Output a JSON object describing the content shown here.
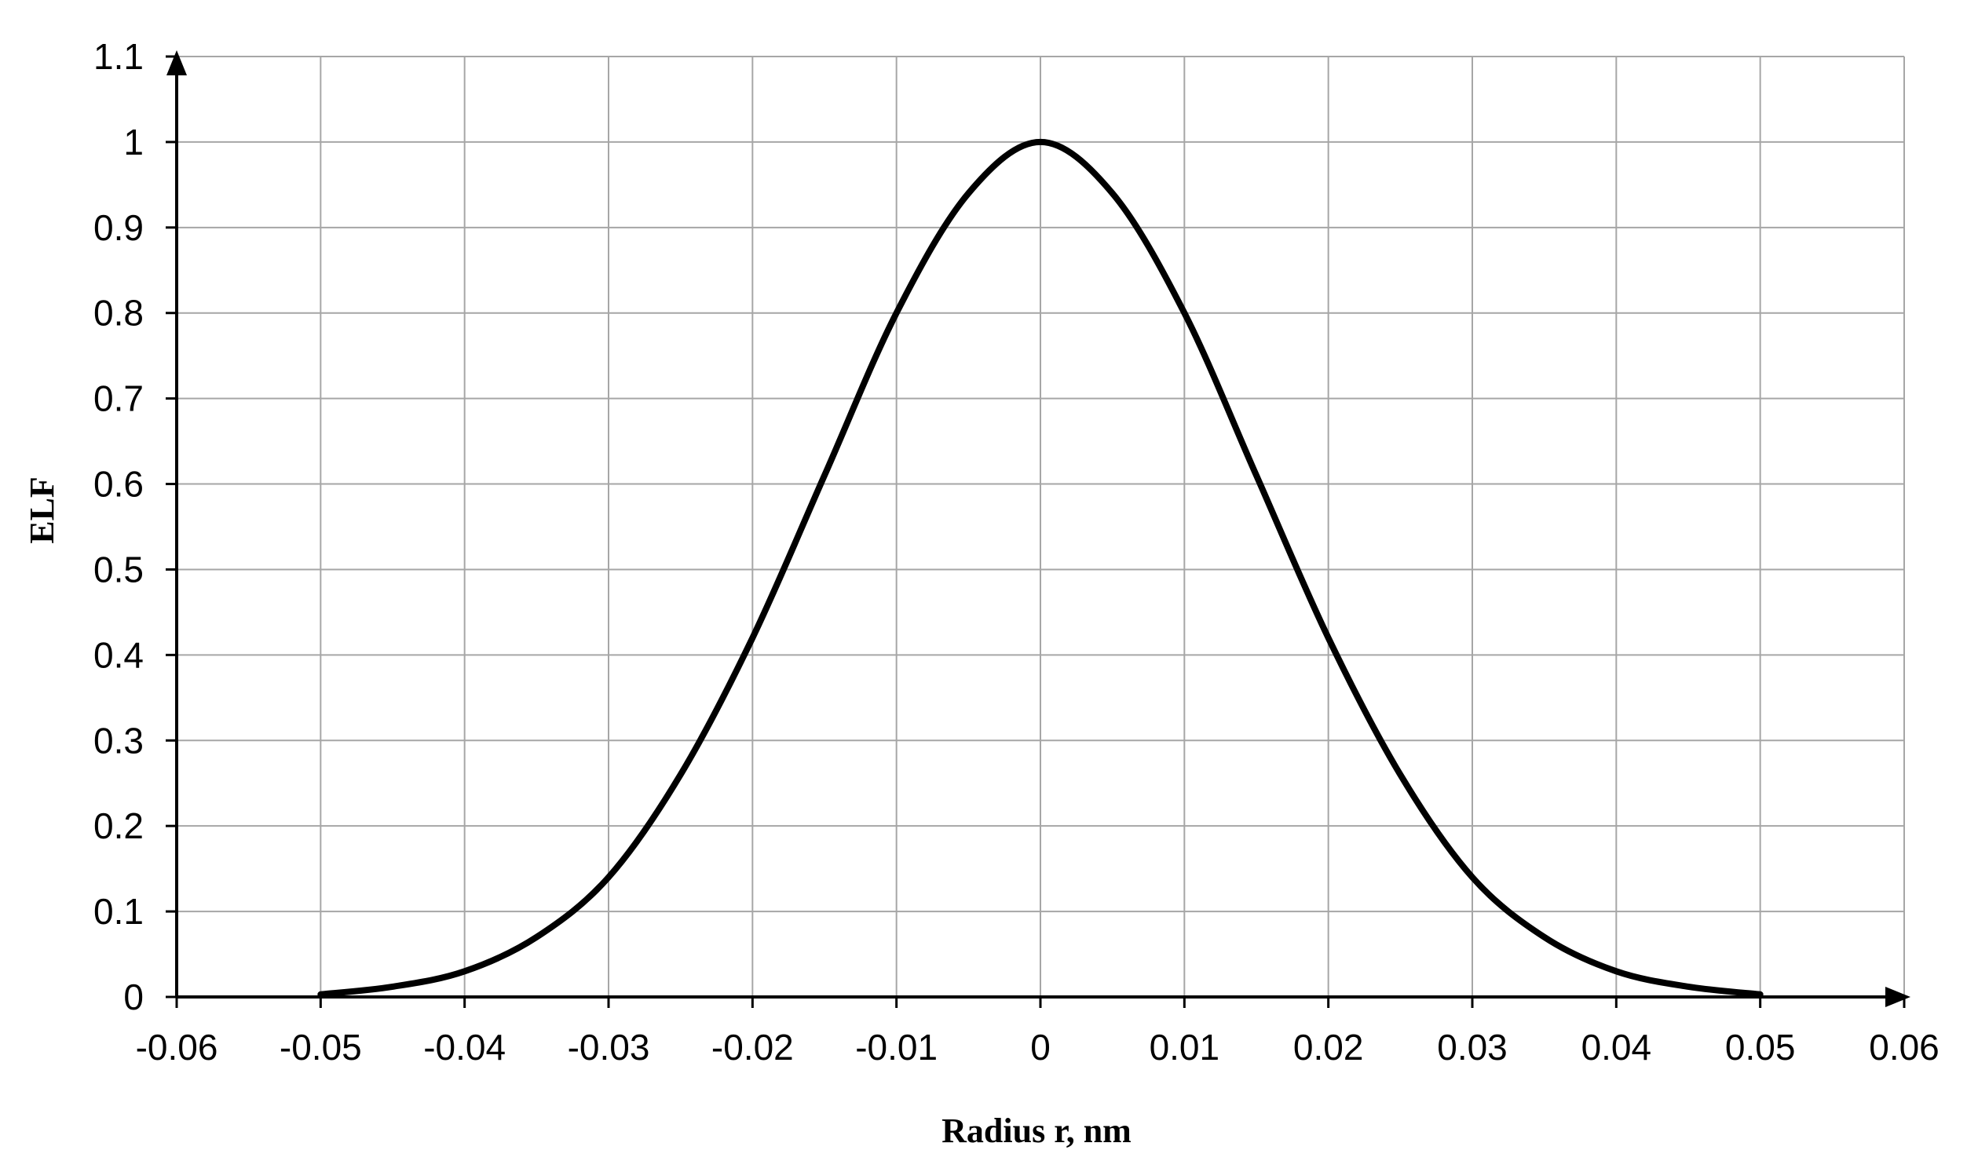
{
  "chart_data": {
    "type": "line",
    "title": "",
    "xlabel": "Radius r, nm",
    "ylabel": "ELF",
    "xlim": [
      -0.06,
      0.06
    ],
    "ylim": [
      0,
      1.1
    ],
    "x_ticks": [
      "-0.06",
      "-0.05",
      "-0.04",
      "-0.03",
      "-0.02",
      "-0.01",
      "0",
      "0.01",
      "0.02",
      "0.03",
      "0.04",
      "0.05",
      "0.06"
    ],
    "y_ticks": [
      "0",
      "0.1",
      "0.2",
      "0.3",
      "0.4",
      "0.5",
      "0.6",
      "0.7",
      "0.8",
      "0.9",
      "1",
      "1.1"
    ],
    "grid": true,
    "legend": "none",
    "colors": {
      "line": "#000000",
      "grid": "#a6a6a6",
      "axis": "#000000"
    },
    "series": [
      {
        "x": [
          -0.05,
          -0.045,
          -0.04,
          -0.035,
          -0.03,
          -0.025,
          -0.02,
          -0.015,
          -0.01,
          -0.005,
          0,
          0.005,
          0.01,
          0.015,
          0.02,
          0.025,
          0.03,
          0.035,
          0.04,
          0.045,
          0.05
        ],
        "values": [
          0.003,
          0.012,
          0.03,
          0.07,
          0.14,
          0.26,
          0.42,
          0.61,
          0.8,
          0.94,
          1.0,
          0.94,
          0.8,
          0.61,
          0.42,
          0.26,
          0.14,
          0.07,
          0.03,
          0.012,
          0.003
        ]
      }
    ]
  }
}
